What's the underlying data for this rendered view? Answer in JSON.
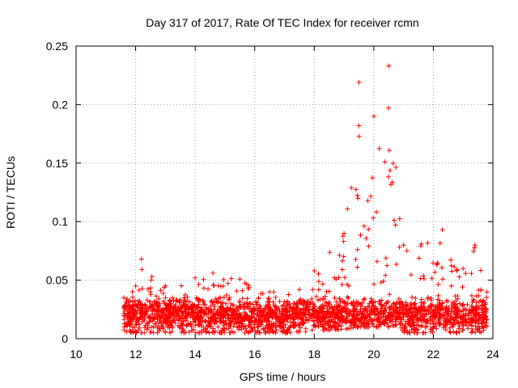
{
  "chart_data": {
    "type": "scatter",
    "title": "Day 317 of 2017, Rate Of TEC Index for receiver rcmn",
    "xlabel": "GPS time / hours",
    "ylabel": "ROTI / TECUs",
    "xlim": [
      10,
      24
    ],
    "ylim": [
      0,
      0.25
    ],
    "xticks": [
      "10",
      "12",
      "14",
      "16",
      "18",
      "20",
      "22",
      "24"
    ],
    "yticks": [
      "0",
      "0.05",
      "0.1",
      "0.15",
      "0.2",
      "0.25"
    ],
    "grid": true,
    "marker": "+",
    "color": "#ff0000",
    "x_range_of_data": [
      11.6,
      23.8
    ],
    "series": [
      {
        "values_profile": [
          {
            "x": 11.6,
            "y_low": 0.005,
            "y_high": 0.035
          },
          {
            "x": 12.0,
            "y_low": 0.005,
            "y_high": 0.045
          },
          {
            "x": 12.2,
            "y_low": 0.005,
            "y_high": 0.068
          },
          {
            "x": 13.0,
            "y_low": 0.005,
            "y_high": 0.045
          },
          {
            "x": 14.0,
            "y_low": 0.005,
            "y_high": 0.052
          },
          {
            "x": 14.6,
            "y_low": 0.005,
            "y_high": 0.056
          },
          {
            "x": 15.5,
            "y_low": 0.005,
            "y_high": 0.051
          },
          {
            "x": 16.5,
            "y_low": 0.005,
            "y_high": 0.04
          },
          {
            "x": 17.5,
            "y_low": 0.005,
            "y_high": 0.042
          },
          {
            "x": 18.0,
            "y_low": 0.007,
            "y_high": 0.058
          },
          {
            "x": 19.0,
            "y_low": 0.008,
            "y_high": 0.09
          },
          {
            "x": 19.5,
            "y_low": 0.01,
            "y_high": 0.219
          },
          {
            "x": 20.0,
            "y_low": 0.01,
            "y_high": 0.19
          },
          {
            "x": 20.5,
            "y_low": 0.01,
            "y_high": 0.233
          },
          {
            "x": 21.0,
            "y_low": 0.005,
            "y_high": 0.08
          },
          {
            "x": 21.6,
            "y_low": 0.005,
            "y_high": 0.081
          },
          {
            "x": 22.3,
            "y_low": 0.005,
            "y_high": 0.093
          },
          {
            "x": 23.0,
            "y_low": 0.005,
            "y_high": 0.06
          },
          {
            "x": 23.4,
            "y_low": 0.005,
            "y_high": 0.08
          },
          {
            "x": 23.8,
            "y_low": 0.005,
            "y_high": 0.04
          }
        ]
      }
    ]
  }
}
